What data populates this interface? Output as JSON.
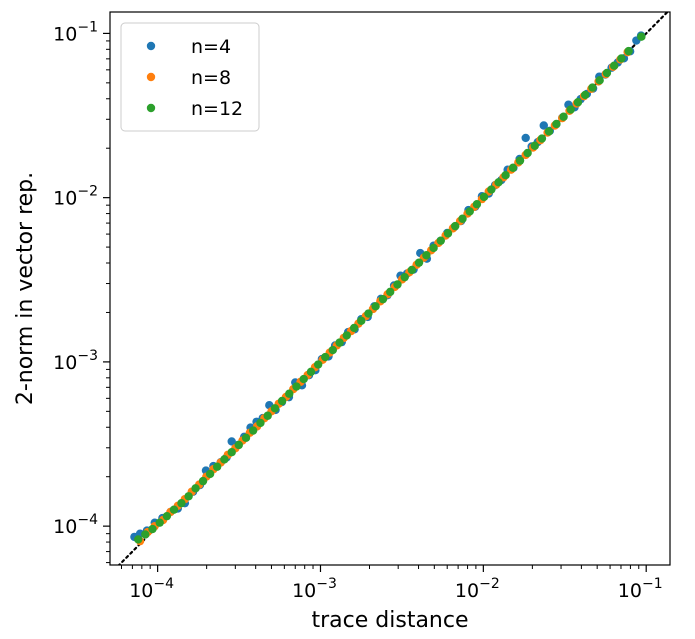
{
  "chart_data": {
    "type": "scatter",
    "xlabel": "trace distance",
    "ylabel": "2-norm in vector rep.",
    "xscale": "log",
    "yscale": "log",
    "xlim": [
      5.1e-05,
      0.14
    ],
    "ylim": [
      5.8e-05,
      0.135
    ],
    "xticks": [
      0.0001,
      0.001,
      0.01,
      0.1
    ],
    "xtick_labels": [
      {
        "base": "10",
        "exp": "−4"
      },
      {
        "base": "10",
        "exp": "−3"
      },
      {
        "base": "10",
        "exp": "−2"
      },
      {
        "base": "10",
        "exp": "−1"
      }
    ],
    "yticks": [
      0.0001,
      0.001,
      0.01,
      0.1
    ],
    "ytick_labels": [
      {
        "base": "10",
        "exp": "−4"
      },
      {
        "base": "10",
        "exp": "−3"
      },
      {
        "base": "10",
        "exp": "−2"
      },
      {
        "base": "10",
        "exp": "−1"
      }
    ],
    "grid": false,
    "legend_position": "top-left",
    "reference_line": {
      "style": "dotted",
      "color": "#000000",
      "slope": 1,
      "intercept_ratio": 1.0
    },
    "series": [
      {
        "name": "n=4",
        "color": "#1f77b4",
        "points": [
          [
            7.2e-05,
            8.6e-05
          ],
          [
            7.8e-05,
            9e-05
          ],
          [
            8.6e-05,
            9.4e-05
          ],
          [
            9.6e-05,
            0.000105
          ],
          [
            0.000107,
            0.000112
          ],
          [
            0.00012,
            0.000122
          ],
          [
            0.000133,
            0.000128
          ],
          [
            0.000147,
            0.000138
          ],
          [
            0.000165,
            0.000162
          ],
          [
            0.000182,
            0.000178
          ],
          [
            0.000198,
            0.000218
          ],
          [
            0.00022,
            0.000232
          ],
          [
            0.000244,
            0.000245
          ],
          [
            0.000265,
            0.000262
          ],
          [
            0.000285,
            0.000328
          ],
          [
            0.000312,
            0.000312
          ],
          [
            0.00034,
            0.00035
          ],
          [
            0.000372,
            0.000398
          ],
          [
            0.000405,
            0.000432
          ],
          [
            0.000442,
            0.000455
          ],
          [
            0.000485,
            0.000545
          ],
          [
            0.00053,
            0.00051
          ],
          [
            0.00058,
            0.00057
          ],
          [
            0.00064,
            0.00061
          ],
          [
            0.0007,
            0.00075
          ],
          [
            0.00077,
            0.00072
          ],
          [
            0.00085,
            0.00083
          ],
          [
            0.00093,
            0.00089
          ],
          [
            0.00102,
            0.00104
          ],
          [
            0.00112,
            0.00108
          ],
          [
            0.00123,
            0.00126
          ],
          [
            0.00135,
            0.00132
          ],
          [
            0.00148,
            0.00152
          ],
          [
            0.00162,
            0.00158
          ],
          [
            0.00178,
            0.00182
          ],
          [
            0.00195,
            0.00188
          ],
          [
            0.00214,
            0.00218
          ],
          [
            0.00235,
            0.00242
          ],
          [
            0.00258,
            0.00255
          ],
          [
            0.00283,
            0.00292
          ],
          [
            0.0031,
            0.00335
          ],
          [
            0.0034,
            0.00345
          ],
          [
            0.00373,
            0.00365
          ],
          [
            0.0041,
            0.0046
          ],
          [
            0.0045,
            0.00425
          ],
          [
            0.00495,
            0.0051
          ],
          [
            0.00545,
            0.00545
          ],
          [
            0.006,
            0.0061
          ],
          [
            0.0066,
            0.0066
          ],
          [
            0.0073,
            0.0072
          ],
          [
            0.0081,
            0.0084
          ],
          [
            0.0089,
            0.0088
          ],
          [
            0.0098,
            0.0102
          ],
          [
            0.0108,
            0.0106
          ],
          [
            0.0118,
            0.0119
          ],
          [
            0.0129,
            0.0128
          ],
          [
            0.0141,
            0.0148
          ],
          [
            0.0153,
            0.0152
          ],
          [
            0.0167,
            0.0172
          ],
          [
            0.0182,
            0.0231
          ],
          [
            0.0198,
            0.0205
          ],
          [
            0.0216,
            0.0218
          ],
          [
            0.0235,
            0.0275
          ],
          [
            0.0256,
            0.0255
          ],
          [
            0.028,
            0.0279
          ],
          [
            0.0305,
            0.0306
          ],
          [
            0.0333,
            0.0368
          ],
          [
            0.0363,
            0.0355
          ],
          [
            0.0396,
            0.0398
          ],
          [
            0.0432,
            0.0428
          ],
          [
            0.0472,
            0.0462
          ],
          [
            0.0515,
            0.0545
          ],
          [
            0.0562,
            0.0562
          ],
          [
            0.0613,
            0.0618
          ],
          [
            0.0669,
            0.0665
          ],
          [
            0.073,
            0.0705
          ],
          [
            0.0797,
            0.0778
          ],
          [
            0.087,
            0.0905
          ],
          [
            0.093,
            0.097
          ]
        ]
      },
      {
        "name": "n=8",
        "color": "#ff7f0e",
        "points": [
          [
            7.8e-05,
            8.1e-05
          ],
          [
            8.7e-05,
            9.2e-05
          ],
          [
            9.6e-05,
            0.0001
          ],
          [
            0.000108,
            0.000109
          ],
          [
            0.00012,
            0.000122
          ],
          [
            0.000133,
            0.000133
          ],
          [
            0.000147,
            0.000146
          ],
          [
            0.000162,
            0.000162
          ],
          [
            0.00018,
            0.000179
          ],
          [
            0.000199,
            0.0002
          ],
          [
            0.00022,
            0.000222
          ],
          [
            0.000244,
            0.000244
          ],
          [
            0.00027,
            0.000272
          ],
          [
            0.0003,
            0.000298
          ],
          [
            0.000332,
            0.000332
          ],
          [
            0.000368,
            0.00037
          ],
          [
            0.000408,
            0.000405
          ],
          [
            0.000452,
            0.000454
          ],
          [
            0.0005,
            0.0005
          ],
          [
            0.000554,
            0.000556
          ],
          [
            0.000614,
            0.000612
          ],
          [
            0.00068,
            0.000682
          ],
          [
            0.000754,
            0.000756
          ],
          [
            0.000835,
            0.000832
          ],
          [
            0.000925,
            0.000928
          ],
          [
            0.00103,
            0.00103
          ],
          [
            0.00114,
            0.00114
          ],
          [
            0.00126,
            0.00126
          ],
          [
            0.00139,
            0.0014
          ],
          [
            0.00154,
            0.00154
          ],
          [
            0.00171,
            0.00171
          ],
          [
            0.0019,
            0.0019
          ],
          [
            0.0021,
            0.0021
          ],
          [
            0.00233,
            0.00234
          ],
          [
            0.00258,
            0.00258
          ],
          [
            0.00286,
            0.00286
          ],
          [
            0.00317,
            0.00318
          ],
          [
            0.00351,
            0.00351
          ],
          [
            0.00389,
            0.0039
          ],
          [
            0.00431,
            0.00431
          ],
          [
            0.00478,
            0.00478
          ],
          [
            0.0053,
            0.0053
          ],
          [
            0.00587,
            0.00588
          ],
          [
            0.0065,
            0.0065
          ],
          [
            0.0072,
            0.0072
          ],
          [
            0.008,
            0.008
          ],
          [
            0.0088,
            0.0088
          ],
          [
            0.0098,
            0.0098
          ],
          [
            0.0108,
            0.0109
          ],
          [
            0.012,
            0.012
          ],
          [
            0.0133,
            0.0133
          ],
          [
            0.0148,
            0.0148
          ],
          [
            0.0164,
            0.0164
          ],
          [
            0.0182,
            0.0182
          ],
          [
            0.0202,
            0.0202
          ],
          [
            0.0224,
            0.0224
          ],
          [
            0.0248,
            0.0249
          ],
          [
            0.0275,
            0.0275
          ],
          [
            0.0305,
            0.0305
          ],
          [
            0.0338,
            0.0338
          ],
          [
            0.0374,
            0.0374
          ],
          [
            0.0415,
            0.0415
          ],
          [
            0.046,
            0.046
          ],
          [
            0.051,
            0.051
          ],
          [
            0.0565,
            0.0565
          ],
          [
            0.0626,
            0.0626
          ],
          [
            0.0694,
            0.0694
          ],
          [
            0.0769,
            0.0769
          ]
        ]
      },
      {
        "name": "n=12",
        "color": "#2ca02c",
        "points": [
          [
            7.6e-05,
            8.3e-05
          ],
          [
            8.4e-05,
            8.9e-05
          ],
          [
            9.3e-05,
            9.6e-05
          ],
          [
            0.000103,
            0.000105
          ],
          [
            0.000114,
            0.000115
          ],
          [
            0.000126,
            0.000126
          ],
          [
            0.00014,
            0.000138
          ],
          [
            0.000155,
            0.000152
          ],
          [
            0.000171,
            0.00017
          ],
          [
            0.00019,
            0.000188
          ],
          [
            0.00021,
            0.000208
          ],
          [
            0.000232,
            0.00023
          ],
          [
            0.000257,
            0.000255
          ],
          [
            0.000285,
            0.000282
          ],
          [
            0.000315,
            0.000312
          ],
          [
            0.000349,
            0.000345
          ],
          [
            0.000386,
            0.000382
          ],
          [
            0.000428,
            0.000425
          ],
          [
            0.000474,
            0.00047
          ],
          [
            0.000525,
            0.000522
          ],
          [
            0.000581,
            0.000578
          ],
          [
            0.000643,
            0.00064
          ],
          [
            0.000712,
            0.000708
          ],
          [
            0.000789,
            0.000786
          ],
          [
            0.000874,
            0.00087
          ],
          [
            0.000968,
            0.000964
          ],
          [
            0.00107,
            0.00107
          ],
          [
            0.00119,
            0.00118
          ],
          [
            0.00131,
            0.00131
          ],
          [
            0.00145,
            0.00145
          ],
          [
            0.00161,
            0.00161
          ],
          [
            0.00178,
            0.00178
          ],
          [
            0.00197,
            0.00197
          ],
          [
            0.00218,
            0.00218
          ],
          [
            0.00242,
            0.00241
          ],
          [
            0.00268,
            0.00267
          ],
          [
            0.00297,
            0.00296
          ],
          [
            0.00329,
            0.00328
          ],
          [
            0.00364,
            0.00363
          ],
          [
            0.00403,
            0.00402
          ],
          [
            0.00447,
            0.00446
          ],
          [
            0.00495,
            0.00494
          ],
          [
            0.00548,
            0.00547
          ],
          [
            0.00607,
            0.00606
          ],
          [
            0.00672,
            0.00671
          ],
          [
            0.00745,
            0.00744
          ],
          [
            0.00825,
            0.00824
          ],
          [
            0.00913,
            0.00912
          ],
          [
            0.0101,
            0.0101
          ],
          [
            0.0112,
            0.0112
          ],
          [
            0.0124,
            0.0124
          ],
          [
            0.0137,
            0.0137
          ],
          [
            0.0152,
            0.0152
          ],
          [
            0.0168,
            0.0168
          ],
          [
            0.0187,
            0.0187
          ],
          [
            0.0207,
            0.0207
          ],
          [
            0.0229,
            0.0229
          ],
          [
            0.0253,
            0.0253
          ],
          [
            0.0281,
            0.0281
          ],
          [
            0.0311,
            0.0311
          ],
          [
            0.0344,
            0.0344
          ],
          [
            0.0381,
            0.0381
          ],
          [
            0.0422,
            0.0422
          ],
          [
            0.0468,
            0.0468
          ],
          [
            0.0518,
            0.0518
          ],
          [
            0.0574,
            0.0574
          ],
          [
            0.0636,
            0.0636
          ],
          [
            0.0704,
            0.0704
          ],
          [
            0.078,
            0.078
          ],
          [
            0.0934,
            0.0955
          ]
        ]
      }
    ]
  }
}
